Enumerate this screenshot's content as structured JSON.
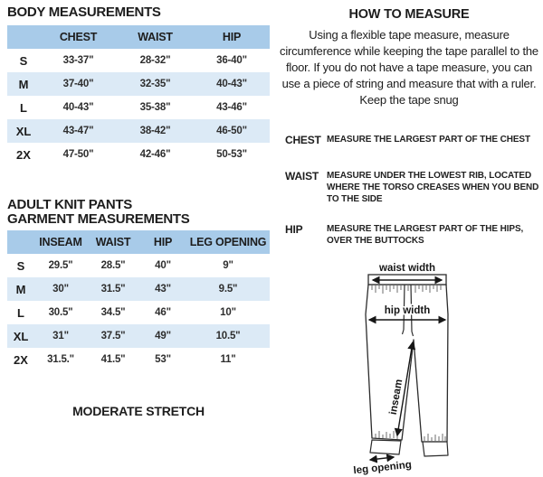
{
  "body_table": {
    "title": "BODY MEASUREMENTS",
    "headers": [
      "",
      "CHEST",
      "WAIST",
      "HIP"
    ],
    "rows": [
      {
        "size": "S",
        "values": [
          "33-37\"",
          "28-32\"",
          "36-40\""
        ]
      },
      {
        "size": "M",
        "values": [
          "37-40\"",
          "32-35\"",
          "40-43\""
        ]
      },
      {
        "size": "L",
        "values": [
          "40-43\"",
          "35-38\"",
          "43-46\""
        ]
      },
      {
        "size": "XL",
        "values": [
          "43-47\"",
          "38-42\"",
          "46-50\""
        ]
      },
      {
        "size": "2X",
        "values": [
          "47-50\"",
          "42-46\"",
          "50-53\""
        ]
      }
    ]
  },
  "garment_table": {
    "title_line1": "ADULT KNIT PANTS",
    "title_line2": "GARMENT MEASUREMENTS",
    "headers": [
      "",
      "INSEAM",
      "WAIST",
      "HIP",
      "LEG OPENING"
    ],
    "rows": [
      {
        "size": "S",
        "values": [
          "29.5\"",
          "28.5\"",
          "40\"",
          "9\""
        ]
      },
      {
        "size": "M",
        "values": [
          "30\"",
          "31.5\"",
          "43\"",
          "9.5\""
        ]
      },
      {
        "size": "L",
        "values": [
          "30.5\"",
          "34.5\"",
          "46\"",
          "10\""
        ]
      },
      {
        "size": "XL",
        "values": [
          "31\"",
          "37.5\"",
          "49\"",
          "10.5\""
        ]
      },
      {
        "size": "2X",
        "values": [
          "31.5.\"",
          "41.5\"",
          "53\"",
          "11\""
        ]
      }
    ]
  },
  "stretch_note": "MODERATE STRETCH",
  "how_to": {
    "title": "HOW TO MEASURE",
    "intro": "Using a flexible tape measure, measure circumference while keeping the tape parallel to the floor.  If you do not have a tape measure, you can use a piece of string and measure that with a ruler. Keep the tape snug",
    "definitions": [
      {
        "term": "CHEST",
        "text": "MEASURE THE LARGEST PART OF THE CHEST"
      },
      {
        "term": "WAIST",
        "text": "MEASURE UNDER THE LOWEST RIB, LOCATED WHERE THE TORSO CREASES WHEN YOU BEND TO THE SIDE"
      },
      {
        "term": "HIP",
        "text": "MEASURE THE LARGEST PART OF THE HIPS, OVER THE BUTTOCKS"
      }
    ]
  },
  "diagram": {
    "waist_label": "waist width",
    "hip_label": "hip width",
    "inseam_label": "inseam",
    "leg_opening_label": "leg opening"
  },
  "colors": {
    "header_blue": "#a8cbe9",
    "row_blue": "#dceaf6",
    "text": "#1d1d1d"
  }
}
